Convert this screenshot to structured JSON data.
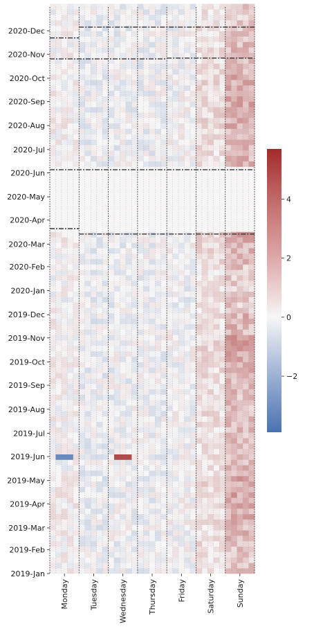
{
  "chart_data": {
    "type": "heatmap",
    "x_axis": {
      "labels": [
        "Monday",
        "Tuesday",
        "Wednesday",
        "Thursday",
        "Friday",
        "Saturday",
        "Sunday"
      ]
    },
    "y_axis": {
      "range": [
        "2019-01-01",
        "2020-12-31"
      ],
      "tick_labels": [
        "2020-Dec",
        "2020-Nov",
        "2020-Oct",
        "2020-Sep",
        "2020-Aug",
        "2020-Jul",
        "2020-Jun",
        "2020-May",
        "2020-Apr",
        "2020-Mar",
        "2020-Feb",
        "2020-Jan",
        "2019-Dec",
        "2019-Nov",
        "2019-Oct",
        "2019-Sep",
        "2019-Aug",
        "2019-Jul",
        "2019-Jun",
        "2019-May",
        "2019-Apr",
        "2019-Mar",
        "2019-Feb",
        "2019-Jan"
      ],
      "direction": "newest at top"
    },
    "colorbar": {
      "colormap": "vlag (blue-white-red)",
      "range": [
        -3.9,
        5.7
      ],
      "ticks": [
        4,
        2,
        0,
        -2
      ],
      "tick_labels": [
        "4",
        "2",
        "0",
        "−2"
      ],
      "low_color": "#4a72b0",
      "mid_color": "#f7f6f6",
      "high_color": "#a42a2a"
    },
    "sunday_mean_by_month": {
      "2019-Jan": 1.4,
      "2019-Feb": 1.7,
      "2019-Mar": 2.0,
      "2019-Apr": 2.1,
      "2019-May": 1.6,
      "2019-Jun": 1.4,
      "2019-Jul": 1.6,
      "2019-Aug": 1.5,
      "2019-Sep": 1.8,
      "2019-Oct": 2.2,
      "2019-Nov": 1.7,
      "2019-Dec": 1.2,
      "2020-Jan": 1.3,
      "2020-Feb": 1.8,
      "2020-Mar": 2.0,
      "2020-Jun": 1.7,
      "2020-Jul": 1.9,
      "2020-Aug": 2.0,
      "2020-Sep": 1.9,
      "2020-Oct": 1.7,
      "2020-Nov": 1.6,
      "2020-Dec": 1.3
    },
    "notable_cells": [
      {
        "x": "Wednesday",
        "y": "2019-May",
        "value": 4.8
      },
      {
        "x": "Monday",
        "y": "2019-May",
        "value": -3.2
      }
    ],
    "dashed_lines": [
      "gaps between weekday columns",
      "week boundaries"
    ],
    "lockdown_band": {
      "from": "2020-Mar",
      "to": "2020-May",
      "values": "near 0 (missing)"
    },
    "grid": false,
    "legend": "colorbar right"
  }
}
